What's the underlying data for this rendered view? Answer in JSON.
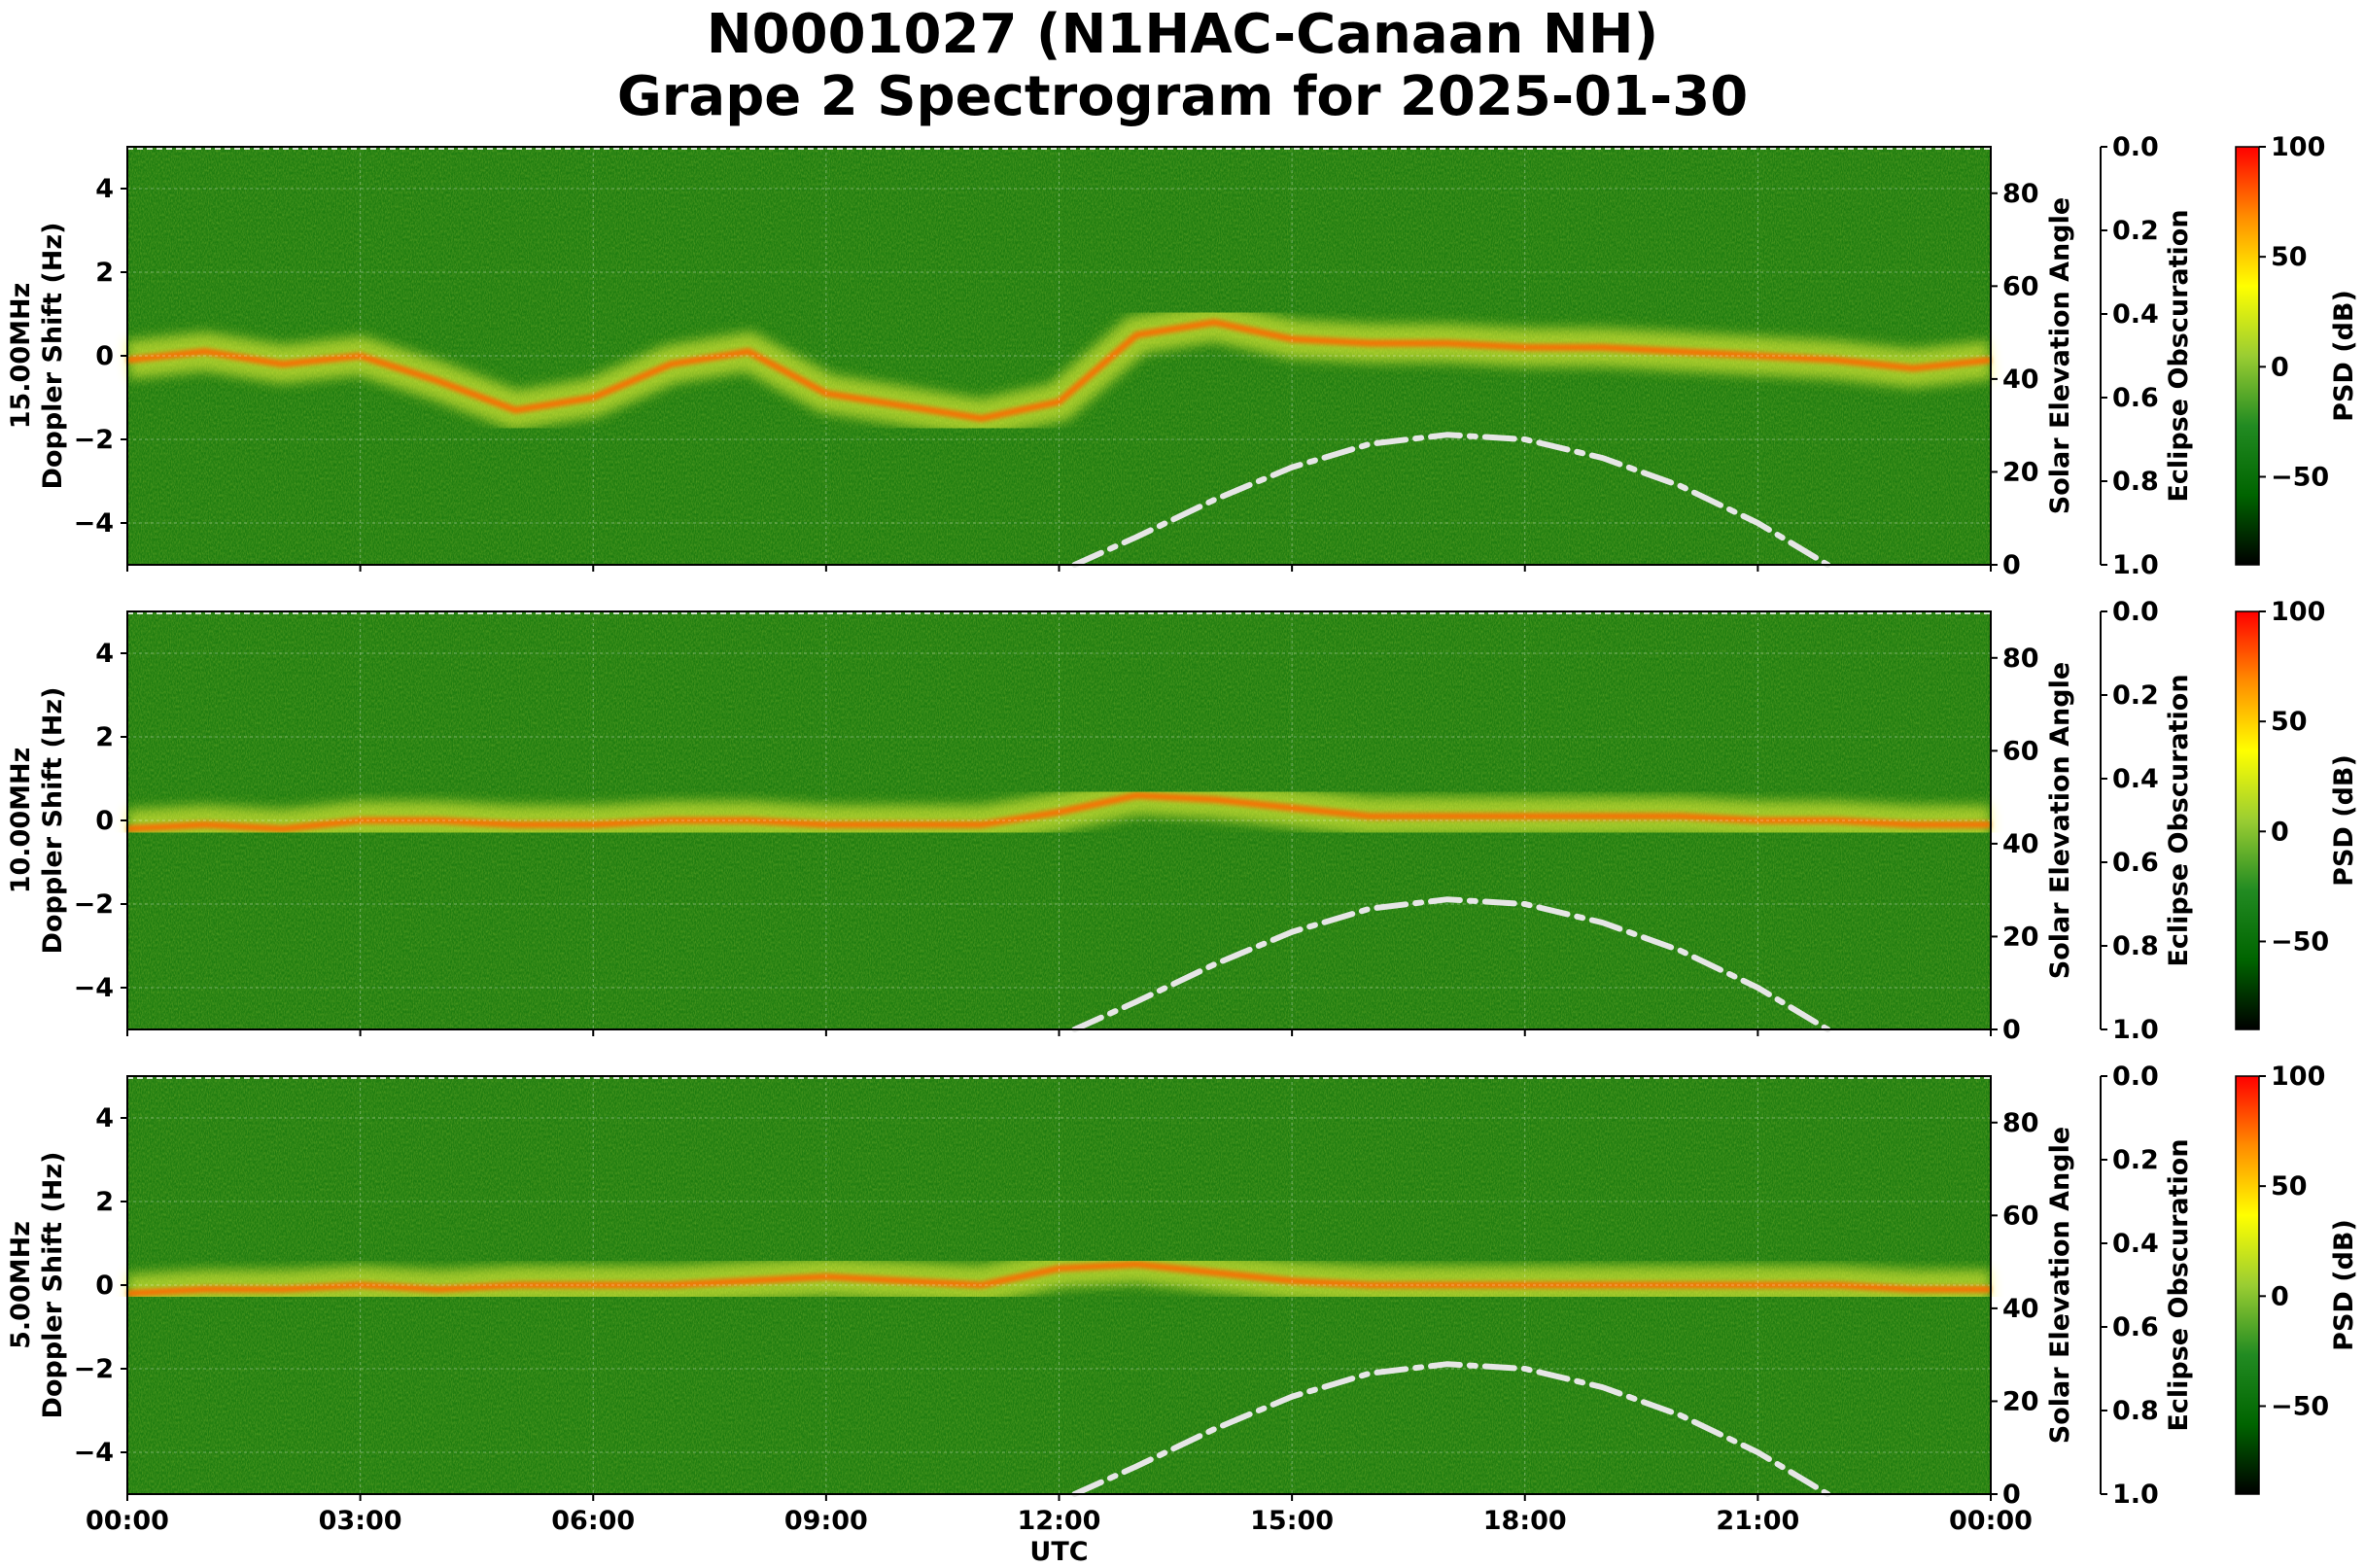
{
  "title_line1": "N0001027 (N1HAC-Canaan NH)",
  "title_line2": "Grape 2 Spectrogram for 2025-01-30",
  "chart_data": [
    {
      "type": "heatmap",
      "panel": "15.00MHz",
      "ylabel": "15.00MHz\nDoppler Shift (Hz)",
      "ylim": [
        -5,
        5
      ],
      "yticks": [
        "4",
        "2",
        "0",
        "−2",
        "−4"
      ],
      "xlim": [
        "00:00",
        "24:00"
      ],
      "y2label": "Solar Elevation Angle",
      "y2lim": [
        0,
        90
      ],
      "y2ticks": [
        "0",
        "20",
        "40",
        "60",
        "80"
      ],
      "y3label": "Eclipse Obscuration",
      "y3ticks": [
        "0.0",
        "0.2",
        "0.4",
        "0.6",
        "0.8",
        "1.0"
      ],
      "carrier_trace_hz": [
        [
          0,
          -0.1
        ],
        [
          1,
          0.1
        ],
        [
          2,
          -0.2
        ],
        [
          3,
          0.0
        ],
        [
          4,
          -0.6
        ],
        [
          5,
          -1.3
        ],
        [
          6,
          -1.0
        ],
        [
          7,
          -0.2
        ],
        [
          8,
          0.1
        ],
        [
          9,
          -0.9
        ],
        [
          10,
          -1.2
        ],
        [
          11,
          -1.5
        ],
        [
          12,
          -1.1
        ],
        [
          13,
          0.5
        ],
        [
          14,
          0.8
        ],
        [
          15,
          0.4
        ],
        [
          16,
          0.3
        ],
        [
          17,
          0.3
        ],
        [
          18,
          0.2
        ],
        [
          19,
          0.2
        ],
        [
          20,
          0.1
        ],
        [
          21,
          0.0
        ],
        [
          22,
          -0.1
        ],
        [
          23,
          -0.3
        ],
        [
          24,
          -0.1
        ]
      ]
    },
    {
      "type": "heatmap",
      "panel": "10.00MHz",
      "ylabel": "10.00MHz\nDoppler Shift (Hz)",
      "ylim": [
        -5,
        5
      ],
      "yticks": [
        "4",
        "2",
        "0",
        "−2",
        "−4"
      ],
      "xlim": [
        "00:00",
        "24:00"
      ],
      "y2label": "Solar Elevation Angle",
      "y2lim": [
        0,
        90
      ],
      "y2ticks": [
        "0",
        "20",
        "40",
        "60",
        "80"
      ],
      "y3label": "Eclipse Obscuration",
      "y3ticks": [
        "0.0",
        "0.2",
        "0.4",
        "0.6",
        "0.8",
        "1.0"
      ],
      "carrier_trace_hz": [
        [
          0,
          -0.2
        ],
        [
          1,
          -0.1
        ],
        [
          2,
          -0.2
        ],
        [
          3,
          0.0
        ],
        [
          4,
          0.0
        ],
        [
          5,
          -0.1
        ],
        [
          6,
          -0.1
        ],
        [
          7,
          0.0
        ],
        [
          8,
          0.0
        ],
        [
          9,
          -0.1
        ],
        [
          10,
          -0.1
        ],
        [
          11,
          -0.1
        ],
        [
          12,
          0.2
        ],
        [
          13,
          0.6
        ],
        [
          14,
          0.5
        ],
        [
          15,
          0.3
        ],
        [
          16,
          0.1
        ],
        [
          17,
          0.1
        ],
        [
          18,
          0.1
        ],
        [
          19,
          0.1
        ],
        [
          20,
          0.1
        ],
        [
          21,
          0.0
        ],
        [
          22,
          0.0
        ],
        [
          23,
          -0.1
        ],
        [
          24,
          -0.1
        ]
      ]
    },
    {
      "type": "heatmap",
      "panel": "5.00MHz",
      "ylabel": "5.00MHz\nDoppler Shift (Hz)",
      "ylim": [
        -5,
        5
      ],
      "yticks": [
        "4",
        "2",
        "0",
        "−2",
        "−4"
      ],
      "xlim": [
        "00:00",
        "24:00"
      ],
      "xticks": [
        "00:00",
        "03:00",
        "06:00",
        "09:00",
        "12:00",
        "15:00",
        "18:00",
        "21:00",
        "00:00"
      ],
      "xlabel": "UTC",
      "y2label": "Solar Elevation Angle",
      "y2lim": [
        0,
        90
      ],
      "y2ticks": [
        "0",
        "20",
        "40",
        "60",
        "80"
      ],
      "y3label": "Eclipse Obscuration",
      "y3ticks": [
        "0.0",
        "0.2",
        "0.4",
        "0.6",
        "0.8",
        "1.0"
      ],
      "carrier_trace_hz": [
        [
          0,
          -0.2
        ],
        [
          1,
          -0.1
        ],
        [
          2,
          -0.1
        ],
        [
          3,
          0.0
        ],
        [
          4,
          -0.1
        ],
        [
          5,
          0.0
        ],
        [
          6,
          0.0
        ],
        [
          7,
          0.0
        ],
        [
          8,
          0.1
        ],
        [
          9,
          0.2
        ],
        [
          10,
          0.1
        ],
        [
          11,
          0.0
        ],
        [
          12,
          0.4
        ],
        [
          13,
          0.5
        ],
        [
          14,
          0.3
        ],
        [
          15,
          0.1
        ],
        [
          16,
          0.0
        ],
        [
          17,
          0.0
        ],
        [
          18,
          0.0
        ],
        [
          19,
          0.0
        ],
        [
          20,
          0.0
        ],
        [
          21,
          0.0
        ],
        [
          22,
          0.0
        ],
        [
          23,
          -0.1
        ],
        [
          24,
          -0.1
        ]
      ]
    }
  ],
  "solar_elevation_deg": [
    [
      12.2,
      0
    ],
    [
      13,
      6
    ],
    [
      14,
      14
    ],
    [
      15,
      21
    ],
    [
      16,
      26
    ],
    [
      17,
      28
    ],
    [
      18,
      27
    ],
    [
      19,
      23
    ],
    [
      20,
      17
    ],
    [
      21,
      9
    ],
    [
      21.9,
      0
    ]
  ],
  "colorbar": {
    "label": "PSD (dB)",
    "ticks": [
      "100",
      "50",
      "0",
      "−50"
    ],
    "range": [
      -90,
      100
    ],
    "colors": [
      "#000000",
      "#006400",
      "#228b22",
      "#9acd32",
      "#ffff00",
      "#ff8c00",
      "#ff0000"
    ]
  },
  "colors": {
    "background": "#1f7d10",
    "sun_curve": "#e6e6e6",
    "carrier_core": "#ff6a00",
    "carrier_halo": "#ffff3a"
  }
}
